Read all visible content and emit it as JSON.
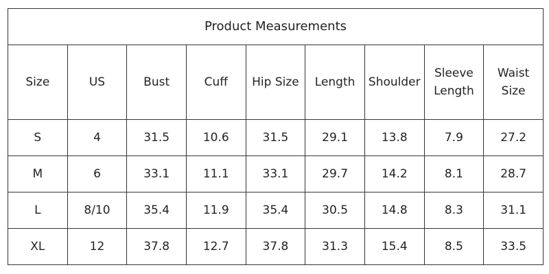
{
  "table": {
    "title": "Product Measurements",
    "columns": [
      "Size",
      "US",
      "Bust",
      "Cuff",
      "Hip Size",
      "Length",
      "Shoulder",
      "Sleeve Length",
      "Waist Size"
    ],
    "rows": [
      [
        "S",
        "4",
        "31.5",
        "10.6",
        "31.5",
        "29.1",
        "13.8",
        "7.9",
        "27.2"
      ],
      [
        "M",
        "6",
        "33.1",
        "11.1",
        "33.1",
        "29.7",
        "14.2",
        "8.1",
        "28.7"
      ],
      [
        "L",
        "8/10",
        "35.4",
        "11.9",
        "35.4",
        "30.5",
        "14.8",
        "8.3",
        "31.1"
      ],
      [
        "XL",
        "12",
        "37.8",
        "12.7",
        "37.8",
        "31.3",
        "15.4",
        "8.5",
        "33.5"
      ]
    ]
  }
}
